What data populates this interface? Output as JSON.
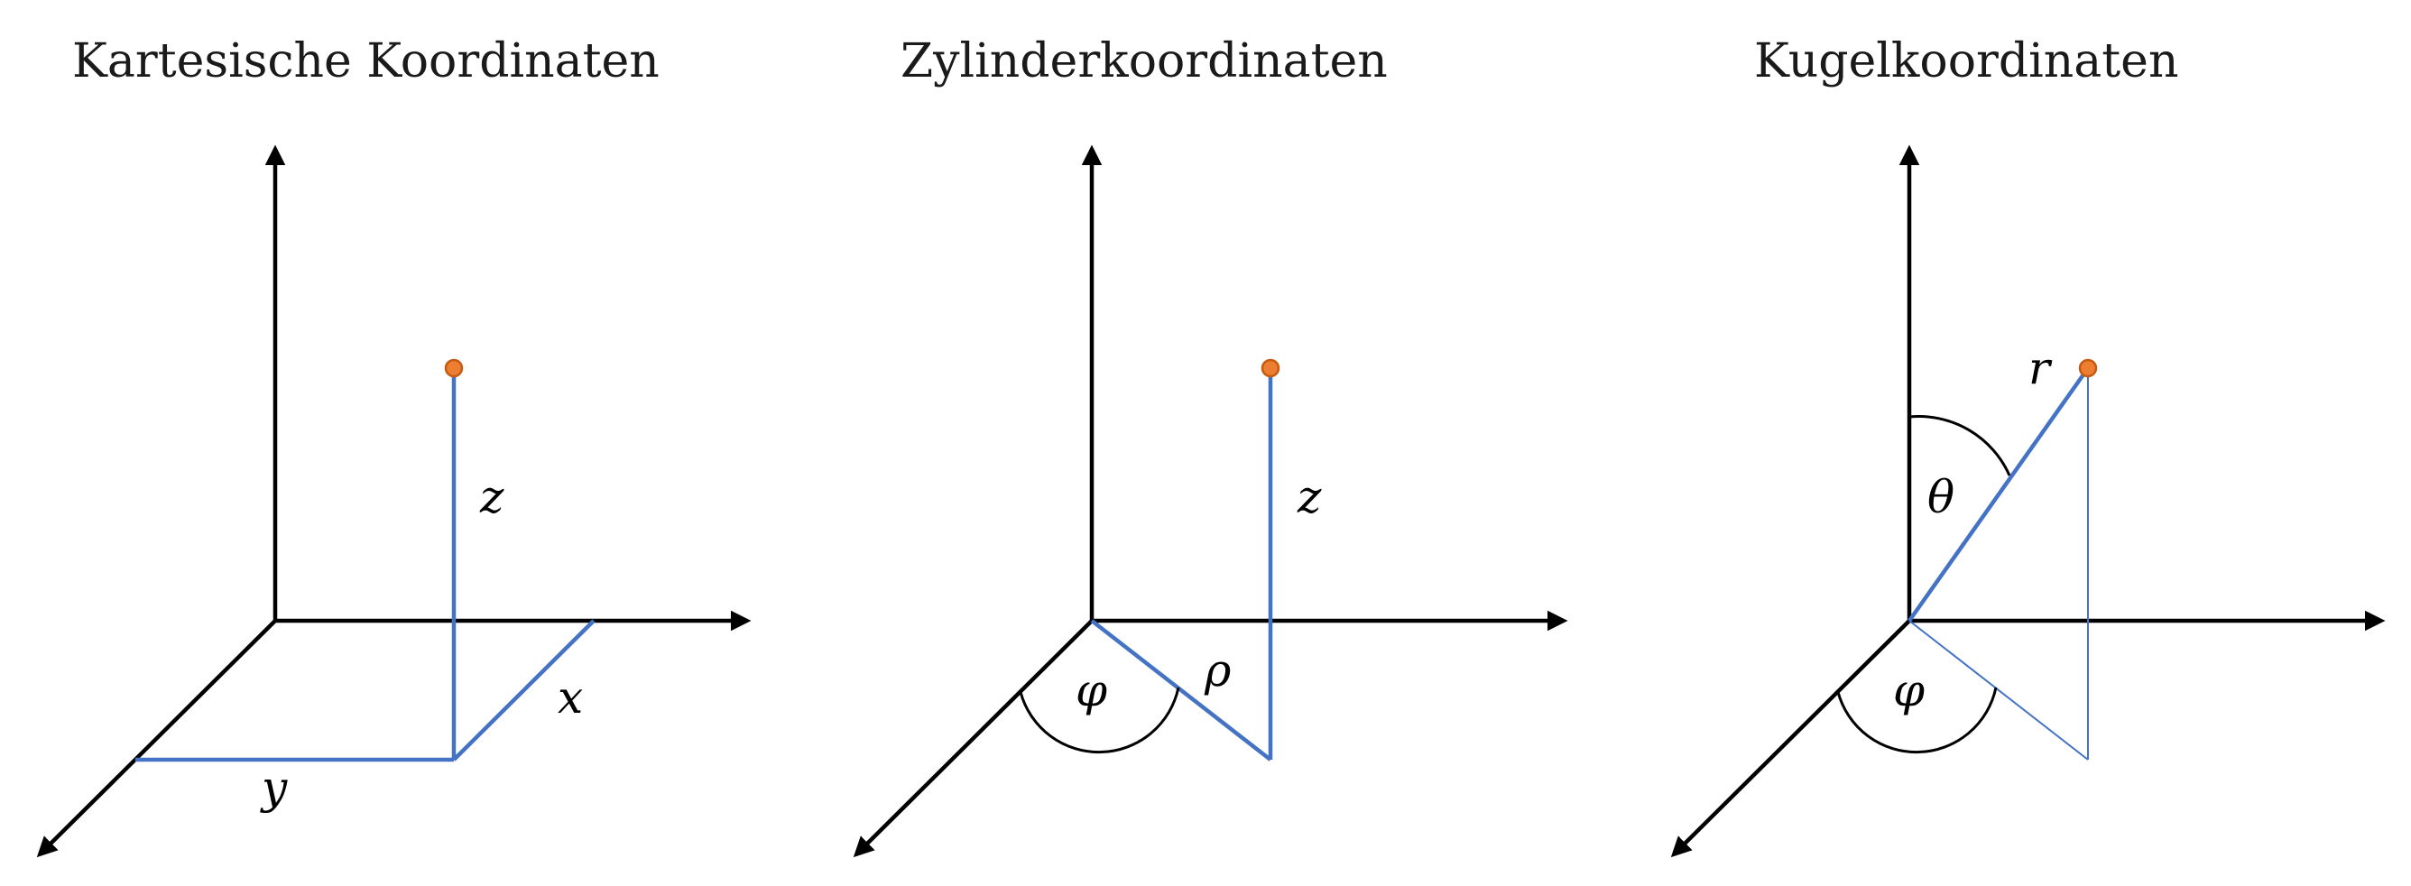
{
  "panels": [
    {
      "title": "Kartesische Koordinaten",
      "labels": {
        "z": "z",
        "x": "x",
        "y": "y"
      }
    },
    {
      "title": "Zylinderkoordinaten",
      "labels": {
        "z": "z",
        "rho": "ρ",
        "phi": "φ"
      }
    },
    {
      "title": "Kugelkoordinaten",
      "labels": {
        "r": "r",
        "theta": "θ",
        "phi": "φ"
      }
    }
  ],
  "colors": {
    "axis": "#000000",
    "line": "#4472C4",
    "point": "#ED7D31"
  }
}
